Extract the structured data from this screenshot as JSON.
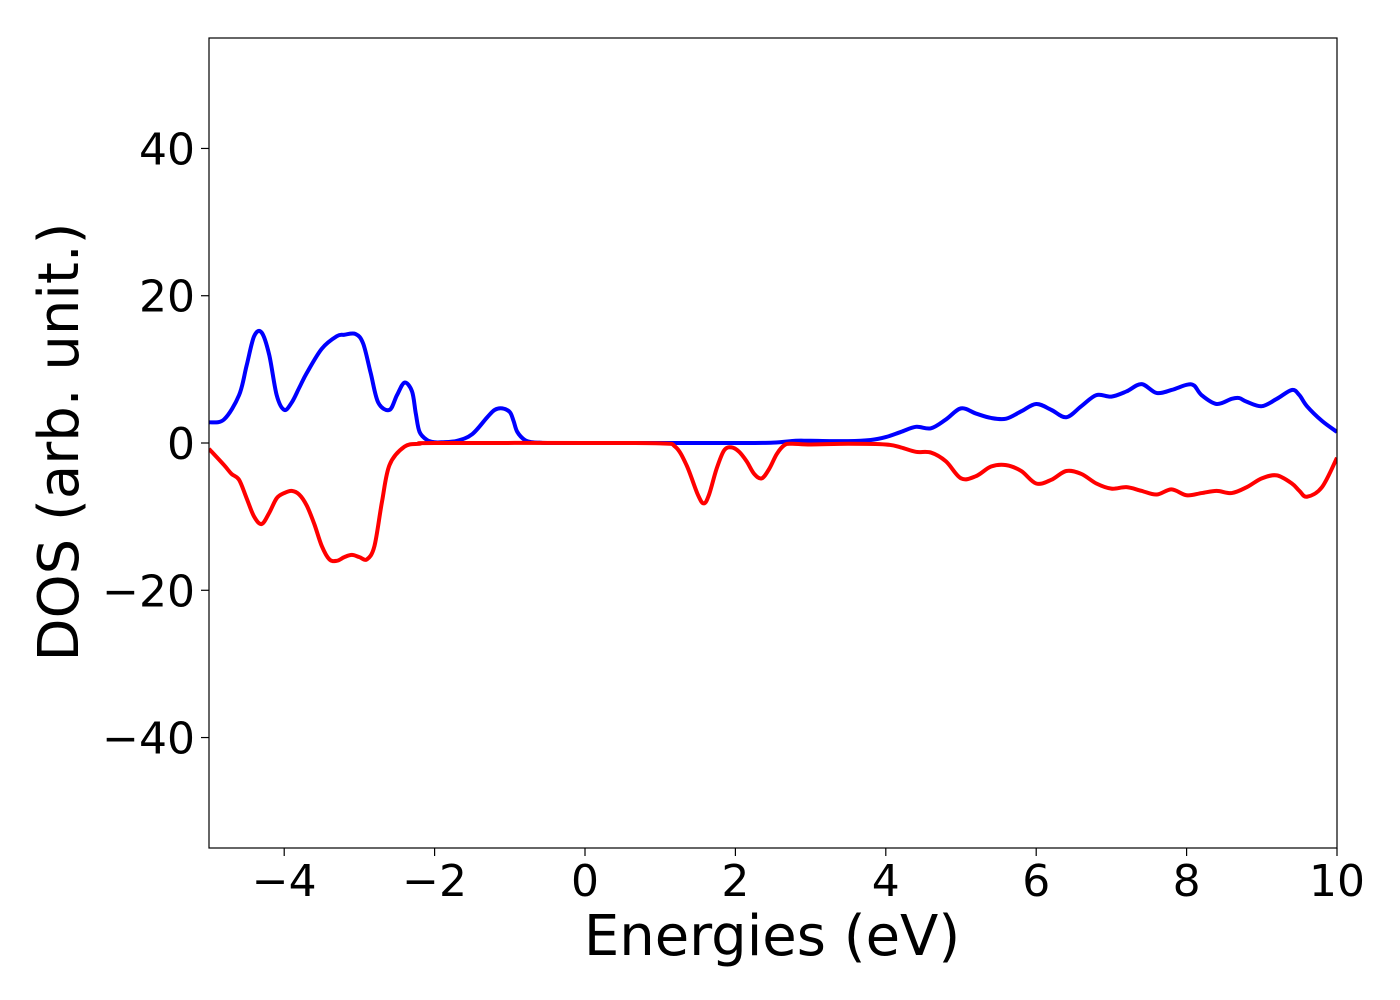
{
  "chart_data": {
    "type": "line",
    "xlabel": "Energies (eV)",
    "ylabel": "DOS (arb. unit.)",
    "xlim": [
      -5,
      10
    ],
    "ylim": [
      -55,
      55
    ],
    "x_ticks": [
      -4,
      -2,
      0,
      2,
      4,
      6,
      8,
      10
    ],
    "x_tick_labels": [
      "−4",
      "−2",
      "0",
      "2",
      "4",
      "6",
      "8",
      "10"
    ],
    "y_ticks": [
      -40,
      -20,
      0,
      20,
      40
    ],
    "y_tick_labels": [
      "−40",
      "−20",
      "0",
      "20",
      "40"
    ],
    "grid": false,
    "legend": "none",
    "series": [
      {
        "color": "#0000ff",
        "x": [
          -5.0,
          -4.8,
          -4.6,
          -4.5,
          -4.4,
          -4.3,
          -4.2,
          -4.1,
          -4.0,
          -3.9,
          -3.8,
          -3.7,
          -3.5,
          -3.3,
          -3.2,
          -3.05,
          -2.95,
          -2.85,
          -2.75,
          -2.6,
          -2.5,
          -2.4,
          -2.3,
          -2.25,
          -2.2,
          -2.1,
          -2.0,
          -1.9,
          -1.7,
          -1.5,
          -1.3,
          -1.2,
          -1.1,
          -1.0,
          -0.95,
          -0.9,
          -0.8,
          -0.7,
          -0.6,
          -0.5,
          0.0,
          1.0,
          2.0,
          2.5,
          2.8,
          3.0,
          3.5,
          3.8,
          4.0,
          4.2,
          4.4,
          4.6,
          4.8,
          5.0,
          5.2,
          5.4,
          5.6,
          5.8,
          6.0,
          6.2,
          6.4,
          6.6,
          6.8,
          7.0,
          7.2,
          7.4,
          7.6,
          7.8,
          8.0,
          8.1,
          8.2,
          8.4,
          8.6,
          8.7,
          8.8,
          9.0,
          9.2,
          9.4,
          9.5,
          9.6,
          9.8,
          10.0
        ],
        "y": [
          2.8,
          3.2,
          6.5,
          10.5,
          14.5,
          15.0,
          12.0,
          6.5,
          4.5,
          5.5,
          7.5,
          9.5,
          12.8,
          14.5,
          14.7,
          14.8,
          13.5,
          9.5,
          5.5,
          4.5,
          6.5,
          8.2,
          7.0,
          4.0,
          1.5,
          0.4,
          0.1,
          0.1,
          0.3,
          1.2,
          3.5,
          4.5,
          4.7,
          4.2,
          3.0,
          1.5,
          0.4,
          0.1,
          0.05,
          0.0,
          0.0,
          0.0,
          0.0,
          0.05,
          0.3,
          0.3,
          0.25,
          0.4,
          0.8,
          1.5,
          2.2,
          2.0,
          3.2,
          4.7,
          4.0,
          3.4,
          3.3,
          4.3,
          5.3,
          4.5,
          3.5,
          5.0,
          6.5,
          6.3,
          7.0,
          8.0,
          6.8,
          7.2,
          7.9,
          7.8,
          6.5,
          5.3,
          6.0,
          6.1,
          5.6,
          5.0,
          6.0,
          7.2,
          6.5,
          5.0,
          3.0,
          1.5
        ]
      },
      {
        "color": "#ff0000",
        "x": [
          -5.0,
          -4.8,
          -4.7,
          -4.6,
          -4.5,
          -4.4,
          -4.3,
          -4.2,
          -4.1,
          -4.0,
          -3.9,
          -3.8,
          -3.7,
          -3.6,
          -3.5,
          -3.4,
          -3.3,
          -3.2,
          -3.1,
          -3.0,
          -2.9,
          -2.8,
          -2.7,
          -2.6,
          -2.4,
          -2.2,
          -2.0,
          0.0,
          1.0,
          1.2,
          1.35,
          1.5,
          1.58,
          1.65,
          1.75,
          1.85,
          1.95,
          2.05,
          2.15,
          2.25,
          2.35,
          2.45,
          2.55,
          2.65,
          2.75,
          3.0,
          3.5,
          4.0,
          4.2,
          4.4,
          4.6,
          4.8,
          5.0,
          5.2,
          5.4,
          5.6,
          5.8,
          6.0,
          6.2,
          6.4,
          6.6,
          6.8,
          7.0,
          7.2,
          7.4,
          7.6,
          7.8,
          8.0,
          8.2,
          8.4,
          8.6,
          8.8,
          9.0,
          9.2,
          9.4,
          9.5,
          9.6,
          9.8,
          10.0
        ],
        "y": [
          -0.8,
          -3.0,
          -4.2,
          -5.0,
          -7.5,
          -10.0,
          -11.0,
          -9.5,
          -7.5,
          -6.8,
          -6.5,
          -7.0,
          -8.5,
          -11.0,
          -14.0,
          -15.8,
          -16.0,
          -15.5,
          -15.2,
          -15.5,
          -15.8,
          -14.0,
          -8.0,
          -3.0,
          -0.5,
          -0.1,
          0.0,
          0.0,
          -0.05,
          -0.5,
          -3.0,
          -7.0,
          -8.2,
          -7.0,
          -3.5,
          -1.0,
          -0.6,
          -1.2,
          -2.5,
          -4.2,
          -4.8,
          -3.5,
          -1.5,
          -0.3,
          -0.1,
          -0.2,
          -0.1,
          -0.2,
          -0.6,
          -1.2,
          -1.3,
          -2.5,
          -4.8,
          -4.5,
          -3.2,
          -3.0,
          -3.8,
          -5.5,
          -5.0,
          -3.8,
          -4.2,
          -5.5,
          -6.2,
          -6.0,
          -6.5,
          -7.0,
          -6.3,
          -7.1,
          -6.8,
          -6.5,
          -6.8,
          -6.0,
          -4.8,
          -4.4,
          -5.5,
          -6.5,
          -7.3,
          -6.0,
          -2.0
        ]
      }
    ]
  }
}
